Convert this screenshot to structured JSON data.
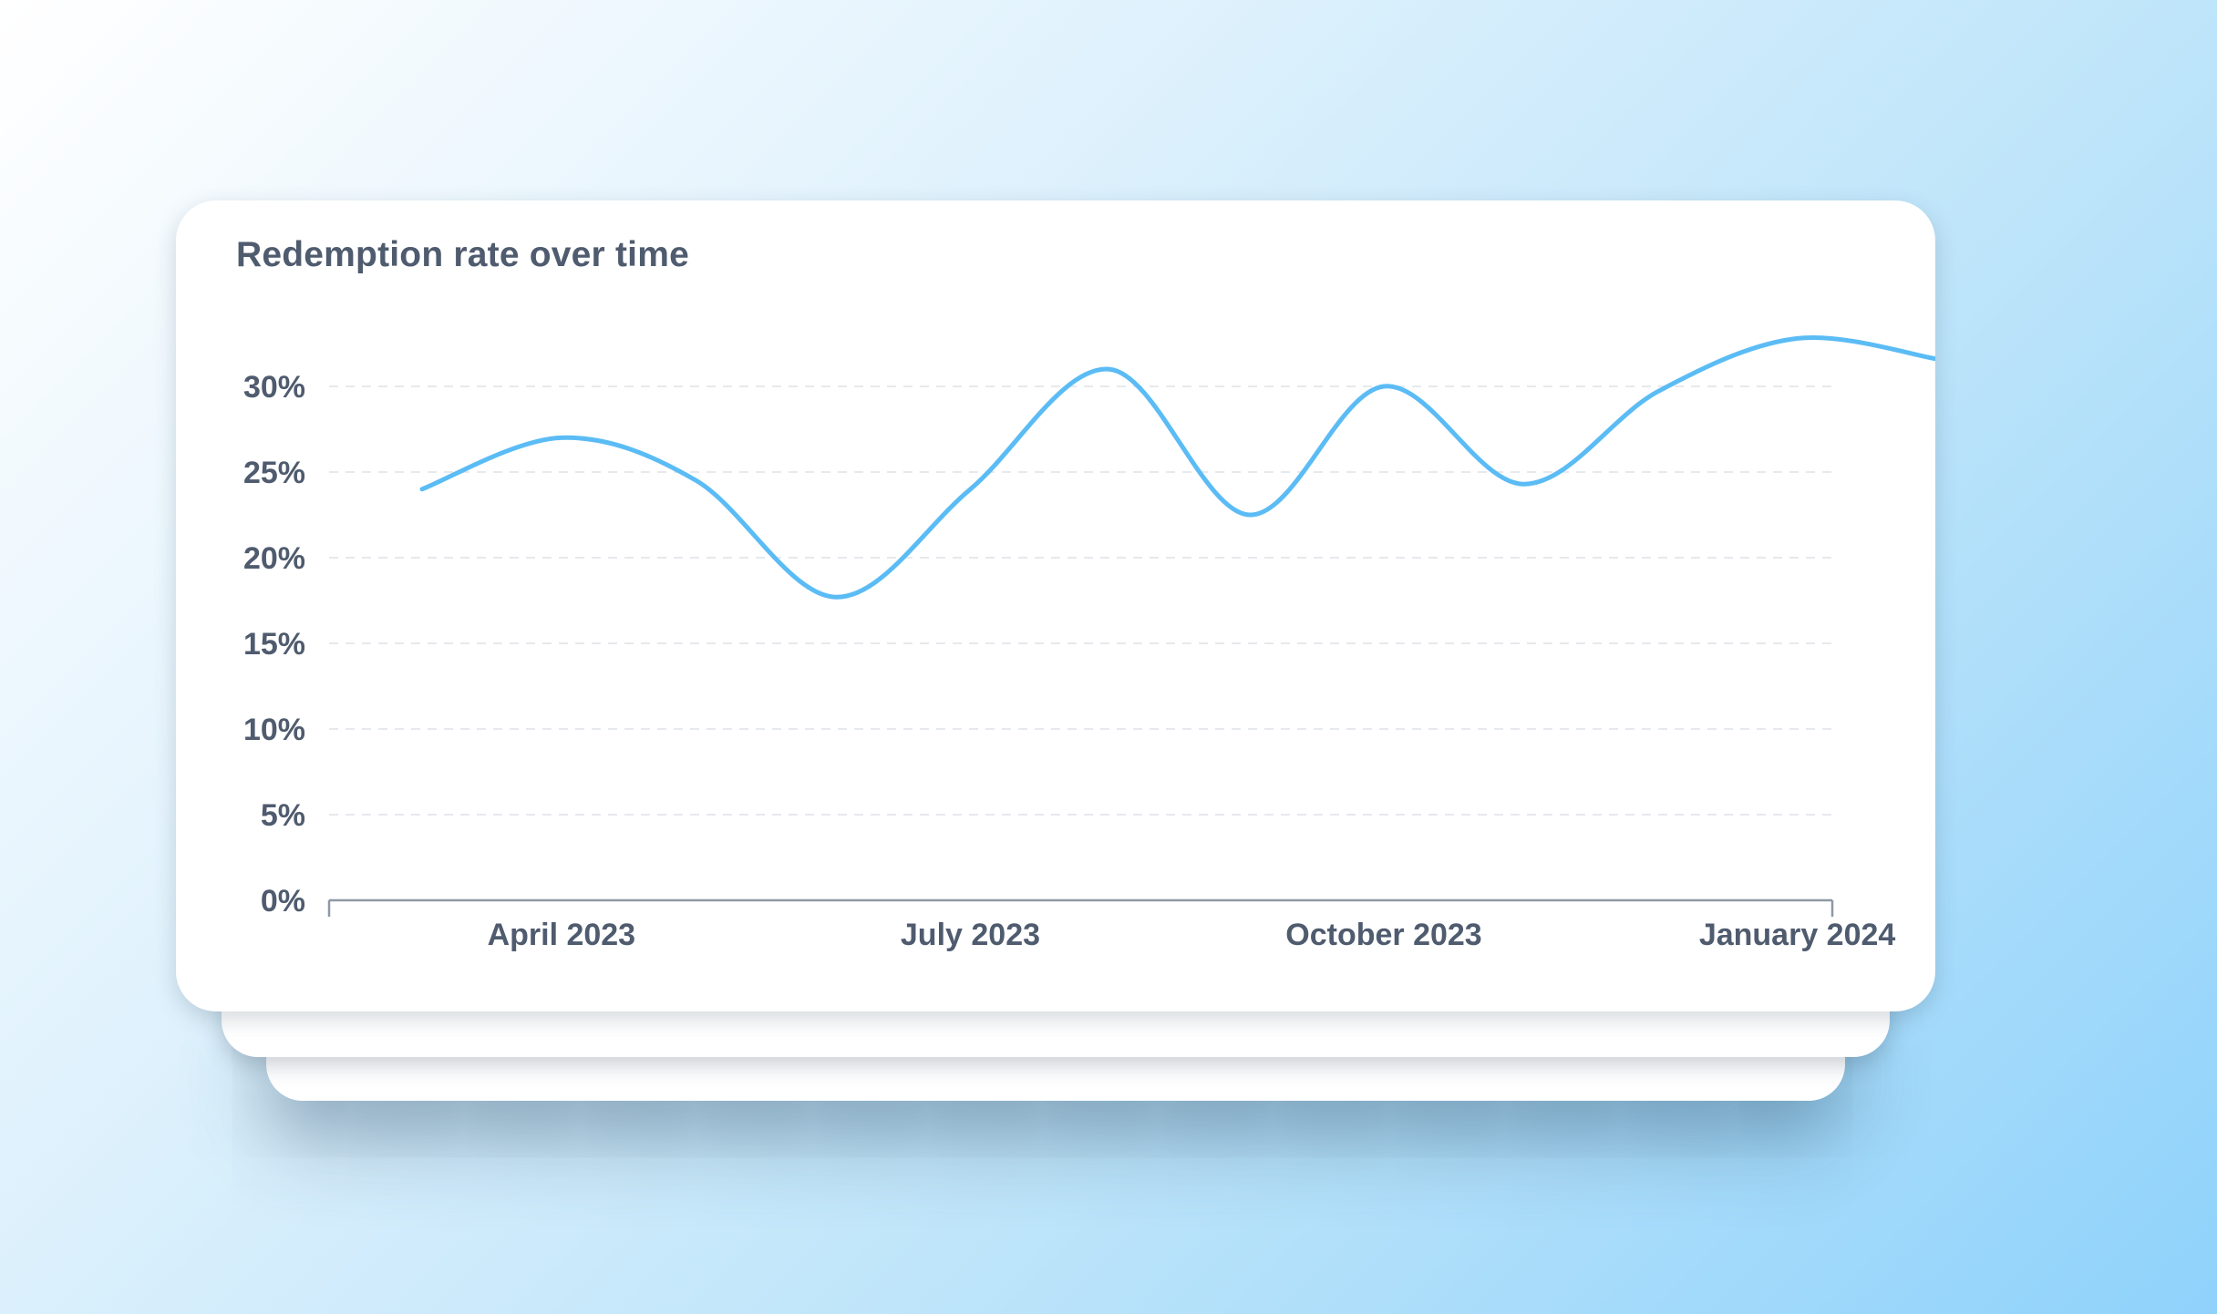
{
  "card": {
    "title": "Redemption rate over time"
  },
  "chart_data": {
    "type": "line",
    "title": "Redemption rate over time",
    "xlabel": "",
    "ylabel": "",
    "x_ticks": [
      "April 2023",
      "July 2023",
      "October 2023",
      "January 2024"
    ],
    "y_ticks": [
      "0%",
      "5%",
      "10%",
      "15%",
      "20%",
      "25%",
      "30%"
    ],
    "ylim": [
      0,
      30
    ],
    "grid": "horizontal dashed",
    "legend": "none",
    "series": [
      {
        "color": "#5bbcf5",
        "x": [
          "2023-03-01",
          "2023-04-01",
          "2023-05-01",
          "2023-06-01",
          "2023-07-01",
          "2023-08-01",
          "2023-09-01",
          "2023-10-01",
          "2023-11-01",
          "2023-12-01",
          "2024-01-01",
          "2024-02-01"
        ],
        "values": [
          24.0,
          27.0,
          24.5,
          17.7,
          24.0,
          31.0,
          22.5,
          30.0,
          24.3,
          29.7,
          32.8,
          31.6
        ]
      }
    ]
  }
}
